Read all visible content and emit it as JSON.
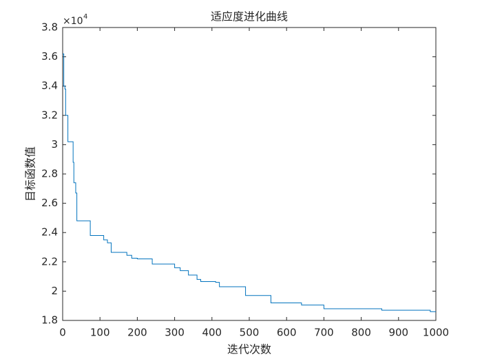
{
  "chart_data": {
    "type": "line",
    "title": "适应度进化曲线",
    "x_label": "迭代次数",
    "y_label": "目标函数值",
    "y_multiplier": {
      "base": "×10",
      "exponent": "4"
    },
    "series": [
      {
        "color": "#0072bd",
        "x": [
          0,
          3,
          3,
          6,
          6,
          8,
          8,
          14,
          14,
          28,
          28,
          30,
          30,
          35,
          35,
          38,
          38,
          74,
          74,
          110,
          110,
          120,
          120,
          130,
          130,
          172,
          172,
          185,
          185,
          200,
          200,
          240,
          240,
          300,
          300,
          315,
          315,
          337,
          337,
          360,
          360,
          370,
          370,
          410,
          410,
          420,
          420,
          490,
          490,
          558,
          558,
          640,
          640,
          700,
          700,
          855,
          855,
          985,
          985,
          1000
        ],
        "values": [
          3.62,
          3.62,
          3.4,
          3.4,
          3.38,
          3.38,
          3.2,
          3.2,
          3.02,
          3.02,
          2.88,
          2.88,
          2.74,
          2.74,
          2.67,
          2.67,
          2.48,
          2.48,
          2.38,
          2.38,
          2.35,
          2.35,
          2.33,
          2.33,
          2.265,
          2.265,
          2.245,
          2.245,
          2.225,
          2.225,
          2.22,
          2.22,
          2.185,
          2.185,
          2.16,
          2.16,
          2.14,
          2.14,
          2.11,
          2.11,
          2.08,
          2.08,
          2.065,
          2.065,
          2.06,
          2.06,
          2.03,
          2.03,
          1.97,
          1.97,
          1.92,
          1.92,
          1.905,
          1.905,
          1.88,
          1.88,
          1.87,
          1.87,
          1.86,
          1.86
        ]
      }
    ],
    "xlim": [
      0,
      1000
    ],
    "xticks": [
      0,
      100,
      200,
      300,
      400,
      500,
      600,
      700,
      800,
      900,
      1000
    ],
    "ylim": [
      1.8,
      3.8
    ],
    "yticks": [
      1.8,
      2,
      2.2,
      2.4,
      2.6,
      2.8,
      3,
      3.2,
      3.4,
      3.6,
      3.8
    ],
    "grid": false
  }
}
